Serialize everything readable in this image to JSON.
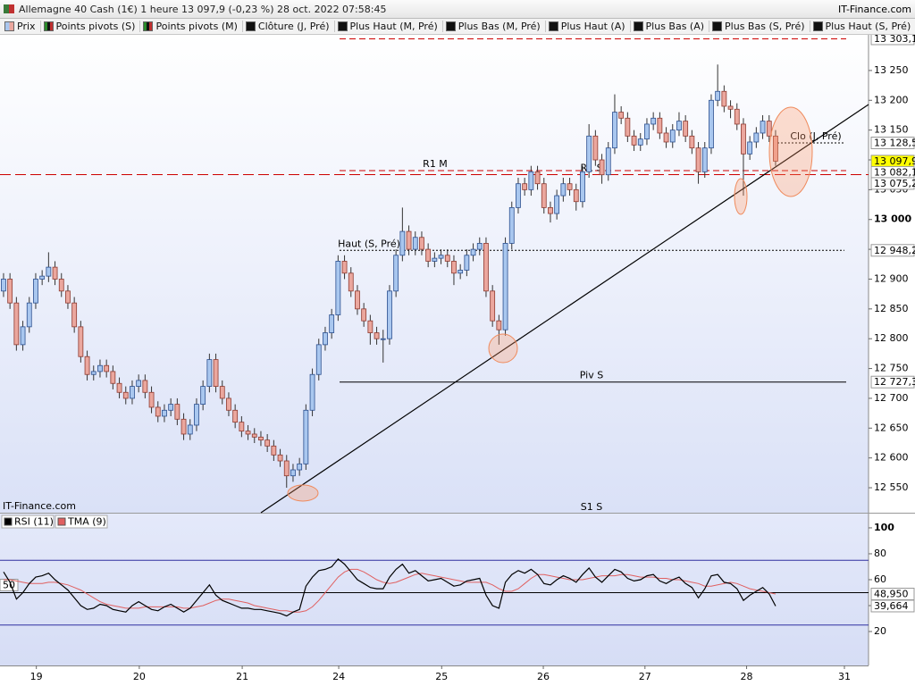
{
  "header": {
    "title": "Allemagne 40 Cash (1€) 1 heure 13 097,9 (-0,23 %) 28 oct. 2022 07:58:45",
    "source": "IT-Finance.com"
  },
  "legend": [
    "Prix",
    "Points pivots (S)",
    "Points pivots (M)",
    "Clôture (J, Pré)",
    "Plus Haut (M, Pré)",
    "Plus Bas (M, Pré)",
    "Plus Haut (A)",
    "Plus Bas (A)",
    "Plus Bas (S, Pré)",
    "Plus Haut (S, Pré)"
  ],
  "chart_data": [
    {
      "type": "candlestick",
      "watermark": "IT-Finance.com",
      "up_color": "#a9c7ef",
      "down_color": "#eba79e",
      "open": [
        12880,
        12900,
        12860,
        12790,
        12820,
        12860,
        12900,
        12905,
        12920,
        12900,
        12880,
        12860,
        12820,
        12770,
        12740,
        12745,
        12755,
        12745,
        12725,
        12710,
        12700,
        12720,
        12730,
        12710,
        12685,
        12670,
        12680,
        12690,
        12665,
        12640,
        12655,
        12690,
        12720,
        12765,
        12720,
        12700,
        12680,
        12660,
        12645,
        12640,
        12635,
        12630,
        12620,
        12605,
        12595,
        12570,
        12580,
        12590,
        12680,
        12740,
        12790,
        12810,
        12840,
        12930,
        12910,
        12880,
        12850,
        12830,
        12810,
        12800,
        12800,
        12880,
        12940,
        12980,
        12950,
        12970,
        12950,
        12930,
        12935,
        12940,
        12930,
        12910,
        12915,
        12940,
        12950,
        12960,
        12880,
        12830,
        12815,
        12960,
        13020,
        13060,
        13050,
        13080,
        13060,
        13020,
        13010,
        13040,
        13060,
        13050,
        13030,
        13080,
        13140,
        13100,
        13075,
        13120,
        13180,
        13170,
        13140,
        13125,
        13135,
        13160,
        13170,
        13145,
        13130,
        13150,
        13165,
        13140,
        13120,
        13080,
        13120,
        13200,
        13215,
        13190,
        13185,
        13160,
        13110,
        13130,
        13145,
        13165,
        13140
      ],
      "high": [
        12910,
        12910,
        12870,
        12830,
        12870,
        12910,
        12915,
        12945,
        12930,
        12910,
        12890,
        12870,
        12830,
        12780,
        12755,
        12765,
        12765,
        12755,
        12735,
        12720,
        12730,
        12740,
        12740,
        12720,
        12695,
        12690,
        12700,
        12700,
        12675,
        12665,
        12700,
        12730,
        12775,
        12775,
        12730,
        12710,
        12690,
        12670,
        12655,
        12650,
        12645,
        12640,
        12630,
        12615,
        12605,
        12590,
        12600,
        12690,
        12750,
        12800,
        12820,
        12850,
        12940,
        12940,
        12920,
        12890,
        12860,
        12840,
        12820,
        12815,
        12890,
        12950,
        13020,
        12990,
        12980,
        12980,
        12960,
        12945,
        12950,
        12950,
        12940,
        12925,
        12950,
        12960,
        12970,
        12970,
        12890,
        12840,
        12970,
        13030,
        13070,
        13070,
        13090,
        13090,
        13070,
        13030,
        13050,
        13070,
        13070,
        13060,
        13090,
        13160,
        13150,
        13110,
        13130,
        13210,
        13190,
        13180,
        13150,
        13145,
        13170,
        13180,
        13180,
        13155,
        13160,
        13180,
        13175,
        13150,
        13130,
        13130,
        13210,
        13260,
        13225,
        13200,
        13195,
        13170,
        13140,
        13155,
        13175,
        13175,
        13150
      ],
      "low": [
        12870,
        12850,
        12780,
        12780,
        12810,
        12850,
        12890,
        12895,
        12890,
        12870,
        12850,
        12810,
        12760,
        12730,
        12730,
        12735,
        12735,
        12715,
        12700,
        12690,
        12690,
        12710,
        12700,
        12675,
        12660,
        12660,
        12670,
        12655,
        12630,
        12630,
        12645,
        12680,
        12710,
        12710,
        12690,
        12670,
        12650,
        12635,
        12630,
        12625,
        12620,
        12610,
        12595,
        12585,
        12550,
        12560,
        12570,
        12580,
        12670,
        12730,
        12780,
        12800,
        12830,
        12900,
        12870,
        12840,
        12820,
        12790,
        12790,
        12760,
        12790,
        12870,
        12930,
        12940,
        12940,
        12940,
        12920,
        12920,
        12925,
        12920,
        12890,
        12900,
        12905,
        12930,
        12940,
        12870,
        12820,
        12790,
        12805,
        12950,
        13010,
        13040,
        13040,
        13050,
        13010,
        12995,
        13000,
        13030,
        13040,
        13015,
        13020,
        13070,
        13090,
        13060,
        13065,
        13110,
        13160,
        13130,
        13115,
        13115,
        13125,
        13150,
        13135,
        13120,
        13120,
        13140,
        13130,
        13110,
        13060,
        13070,
        13110,
        13190,
        13180,
        13170,
        13150,
        13040,
        13100,
        13120,
        13135,
        13130,
        13090
      ],
      "close": [
        12900,
        12860,
        12790,
        12820,
        12860,
        12900,
        12905,
        12920,
        12900,
        12880,
        12860,
        12820,
        12770,
        12740,
        12745,
        12755,
        12745,
        12725,
        12710,
        12700,
        12720,
        12730,
        12710,
        12685,
        12670,
        12680,
        12690,
        12665,
        12640,
        12655,
        12690,
        12720,
        12765,
        12720,
        12700,
        12680,
        12660,
        12645,
        12640,
        12635,
        12630,
        12620,
        12605,
        12595,
        12570,
        12580,
        12590,
        12680,
        12740,
        12790,
        12810,
        12840,
        12930,
        12910,
        12880,
        12850,
        12830,
        12810,
        12800,
        12800,
        12880,
        12940,
        12980,
        12950,
        12970,
        12950,
        12930,
        12935,
        12940,
        12930,
        12910,
        12915,
        12940,
        12950,
        12960,
        12880,
        12830,
        12815,
        12960,
        13020,
        13060,
        13050,
        13080,
        13060,
        13020,
        13010,
        13040,
        13060,
        13050,
        13030,
        13080,
        13140,
        13100,
        13075,
        13120,
        13180,
        13170,
        13140,
        13125,
        13135,
        13160,
        13170,
        13145,
        13130,
        13150,
        13165,
        13140,
        13120,
        13080,
        13120,
        13200,
        13215,
        13190,
        13185,
        13160,
        13110,
        13130,
        13145,
        13165,
        13140,
        13097.9
      ],
      "last_label": "13 097,9",
      "ylim": [
        12508.1,
        13309.8
      ],
      "yticks": [
        {
          "value": 12550,
          "label": "12 550"
        },
        {
          "value": 12600,
          "label": "12 600"
        },
        {
          "value": 12650,
          "label": "12 650"
        },
        {
          "value": 12700,
          "label": "12 700"
        },
        {
          "value": 12750,
          "label": "12 750"
        },
        {
          "value": 12800,
          "label": "12 800"
        },
        {
          "value": 12850,
          "label": "12 850"
        },
        {
          "value": 12900,
          "label": "12 900"
        },
        {
          "value": 12950,
          "label": "12 950"
        },
        {
          "value": 13000,
          "label": "13 000"
        },
        {
          "value": 13050,
          "label": "13 050"
        },
        {
          "value": 13100,
          "label": "13 100"
        },
        {
          "value": 13150,
          "label": "13 150"
        },
        {
          "value": 13200,
          "label": "13 200"
        },
        {
          "value": 13250,
          "label": "13 250"
        }
      ],
      "levels": [
        {
          "value": 13303.1,
          "value_label": "13 303,1",
          "color": "#cc0000",
          "style": "dashed"
        },
        {
          "name": "R1 M",
          "value": 13082.1,
          "value_label": "13 082,1",
          "color": "#cc0000",
          "style": "dashed"
        },
        {
          "name": "R1 S",
          "value": 13075.2,
          "value_label": "13 075,2",
          "color": "#cc0000",
          "style": "longdash"
        },
        {
          "name": "Clo (J, Pré)",
          "value": 13128.5,
          "value_label": "13 128,5",
          "color": "#000000",
          "style": "dotted"
        },
        {
          "name": "Haut (S, Pré)",
          "value": 12948.2,
          "value_label": "12 948,2",
          "color": "#000000",
          "style": "dotted"
        },
        {
          "name": "Piv S",
          "value": 12727.3,
          "value_label": "12 727,3",
          "color": "#000000",
          "style": "solid"
        }
      ],
      "annotations": [
        {
          "text": "S1 S",
          "color": "#1a8a1a"
        }
      ]
    },
    {
      "type": "line",
      "series": [
        {
          "name": "RSI (11)",
          "color": "#000000",
          "last_label": "39,664",
          "values": [
            66,
            58,
            45,
            50,
            57,
            62,
            63,
            65,
            60,
            56,
            52,
            46,
            40,
            37,
            38,
            41,
            40,
            37,
            36,
            35,
            40,
            43,
            40,
            37,
            36,
            39,
            41,
            38,
            35,
            38,
            44,
            50,
            56,
            48,
            44,
            42,
            40,
            38,
            38,
            37,
            37,
            36,
            35,
            34,
            32,
            35,
            37,
            55,
            62,
            67,
            68,
            70,
            76,
            72,
            66,
            60,
            57,
            54,
            53,
            53,
            62,
            68,
            72,
            65,
            67,
            63,
            59,
            60,
            61,
            58,
            55,
            56,
            59,
            60,
            61,
            48,
            40,
            38,
            58,
            64,
            67,
            65,
            68,
            64,
            57,
            56,
            60,
            63,
            61,
            58,
            64,
            69,
            62,
            58,
            63,
            68,
            66,
            61,
            59,
            60,
            63,
            64,
            59,
            57,
            60,
            62,
            57,
            54,
            46,
            53,
            63,
            64,
            58,
            57,
            53,
            44,
            48,
            51,
            54,
            49,
            39.664
          ]
        },
        {
          "name": "TMA (9)",
          "color": "#e06060",
          "last_label": "48,950",
          "values": [
            60,
            60,
            59,
            58,
            57,
            57,
            57,
            58,
            58,
            57,
            56,
            54,
            52,
            49,
            46,
            43,
            41,
            40,
            39,
            38,
            38,
            38,
            39,
            39,
            39,
            39,
            39,
            39,
            38,
            38,
            39,
            40,
            42,
            44,
            45,
            45,
            44,
            43,
            42,
            40,
            39,
            38,
            37,
            36,
            36,
            35,
            35,
            36,
            39,
            44,
            50,
            56,
            62,
            66,
            68,
            68,
            66,
            63,
            60,
            58,
            57,
            58,
            60,
            62,
            64,
            65,
            64,
            63,
            62,
            61,
            60,
            59,
            58,
            58,
            58,
            58,
            56,
            53,
            51,
            51,
            53,
            57,
            61,
            64,
            64,
            63,
            62,
            61,
            60,
            60,
            60,
            61,
            62,
            63,
            63,
            63,
            64,
            64,
            63,
            62,
            62,
            62,
            61,
            61,
            60,
            60,
            59,
            58,
            57,
            55,
            55,
            56,
            57,
            58,
            57,
            55,
            53,
            52,
            51,
            50,
            48.95
          ]
        }
      ],
      "levels": [
        75,
        50,
        25
      ],
      "ylim": [
        -6.2,
        111
      ],
      "yticks": [
        20,
        40,
        60,
        80,
        100
      ],
      "xlim": [
        -0.55,
        134.45
      ],
      "xticks": [
        {
          "value": 5.1,
          "label": "19"
        },
        {
          "value": 21.1,
          "label": "20"
        },
        {
          "value": 37.1,
          "label": "21"
        },
        {
          "value": 52.1,
          "label": "24"
        },
        {
          "value": 68.1,
          "label": "25"
        },
        {
          "value": 83.9,
          "label": "26"
        },
        {
          "value": 99.7,
          "label": "27"
        },
        {
          "value": 115.5,
          "label": "28"
        },
        {
          "value": 130.7,
          "label": "31"
        }
      ]
    }
  ]
}
